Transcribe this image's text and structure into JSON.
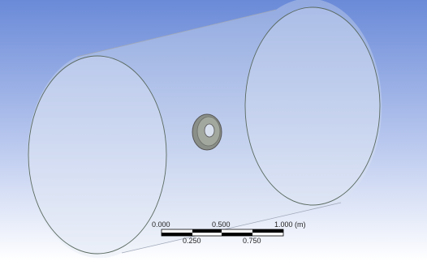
{
  "scale_bar": {
    "top_labels": [
      "0.000",
      "0.500",
      "1.000 (m)"
    ],
    "bottom_labels": [
      "0.250",
      "0.750"
    ]
  }
}
